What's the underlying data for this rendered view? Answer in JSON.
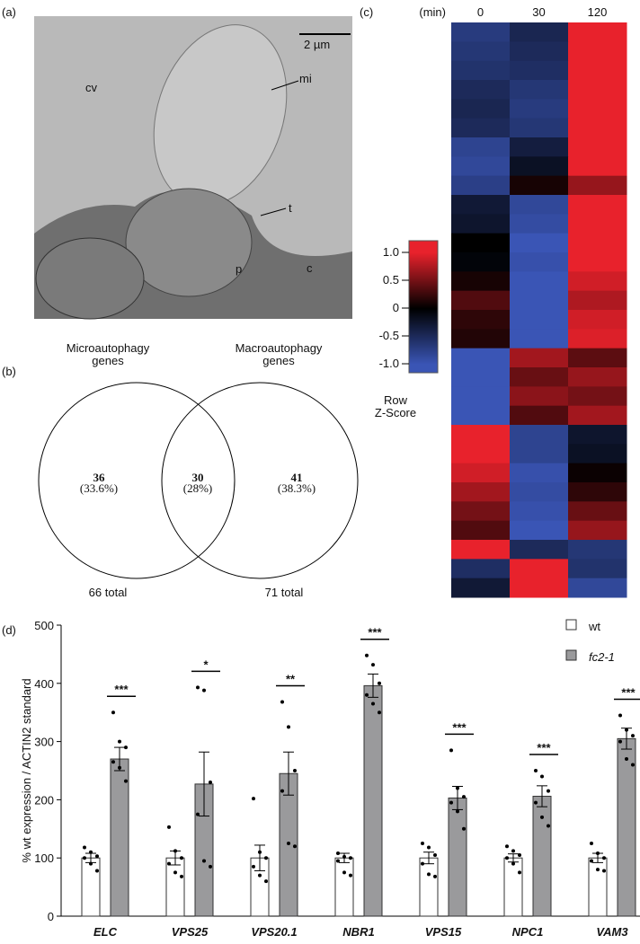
{
  "panel_labels": [
    "(a)",
    "(b)",
    "(c)",
    "(d)"
  ],
  "micrograph": {
    "scale_bar": "2 µm",
    "labels": [
      "cv",
      "mi",
      "t",
      "p",
      "c"
    ]
  },
  "venn": {
    "sets": [
      {
        "name": "Microautophagy\ngenes",
        "total": "66 total"
      },
      {
        "name": "Macroautophagy\ngenes",
        "total": "71 total"
      }
    ],
    "regions": [
      {
        "count": "36",
        "percent": "(33.6%)"
      },
      {
        "count": "30",
        "percent": "(28%)"
      },
      {
        "count": "41",
        "percent": "(38.3%)"
      }
    ]
  },
  "heatmap": {
    "unit": "(min)",
    "columns": [
      "0",
      "30",
      "120"
    ],
    "legend_title": "Row\nZ-Score",
    "legend_ticks": [
      {
        "value": 1,
        "label": "1.0"
      },
      0.5,
      0,
      -0.5,
      {
        "value": -1,
        "label": "-1.0"
      }
    ],
    "rows": [
      [
        -0.7,
        -0.45,
        1.15
      ],
      [
        -0.65,
        -0.5,
        1.15
      ],
      [
        -0.6,
        -0.55,
        1.15
      ],
      [
        -0.5,
        -0.65,
        1.15
      ],
      [
        -0.45,
        -0.7,
        1.15
      ],
      [
        -0.5,
        -0.65,
        1.15
      ],
      [
        -0.8,
        -0.35,
        1.15
      ],
      [
        -0.85,
        -0.2,
        1.05
      ],
      [
        -0.75,
        0.1,
        0.65
      ],
      [
        -0.3,
        -0.85,
        1.15
      ],
      [
        -0.25,
        -0.9,
        1.15
      ],
      [
        0,
        -1,
        1
      ],
      [
        -0.05,
        -0.95,
        1
      ],
      [
        0.1,
        -1,
        0.9
      ],
      [
        0.35,
        -1.1,
        0.75
      ],
      [
        0.2,
        -1.1,
        0.9
      ],
      [
        0.15,
        -1.1,
        0.95
      ],
      [
        -1.1,
        0.7,
        0.4
      ],
      [
        -1.1,
        0.45,
        0.65
      ],
      [
        -1.1,
        0.6,
        0.5
      ],
      [
        -1.05,
        0.35,
        0.7
      ],
      [
        1.05,
        -0.8,
        -0.25
      ],
      [
        1.0,
        -0.8,
        -0.2
      ],
      [
        0.9,
        -0.95,
        0.05
      ],
      [
        0.7,
        -0.9,
        0.2
      ],
      [
        0.5,
        -0.95,
        0.45
      ],
      [
        0.35,
        -1,
        0.65
      ],
      [
        1.15,
        -0.5,
        -0.65
      ],
      [
        -0.55,
        1.15,
        -0.6
      ],
      [
        -0.3,
        1.15,
        -0.85
      ]
    ]
  },
  "chart_data": {
    "type": "bar",
    "ylabel": "% wt expression / ACTIN2 standard",
    "categories": [
      "ELC",
      "VPS25",
      "VPS20.1",
      "NBR1",
      "VPS15",
      "NPC1",
      "VAM3"
    ],
    "ylim": [
      0,
      500
    ],
    "yticks": [
      0,
      100,
      200,
      300,
      400,
      500
    ],
    "annotations": [
      "***",
      "*",
      "**",
      "***",
      "***",
      "***",
      "***"
    ],
    "series": [
      {
        "name": "wt",
        "color": "#ffffff",
        "values": [
          100,
          100,
          100,
          100,
          100,
          100,
          100
        ],
        "errors": [
          8,
          12,
          22,
          8,
          10,
          7,
          8
        ],
        "points": [
          [
            118,
            110,
            103,
            100,
            90,
            78
          ],
          [
            153,
            112,
            100,
            90,
            75,
            68
          ],
          [
            202,
            110,
            100,
            85,
            70,
            60
          ],
          [
            108,
            102,
            100,
            95,
            75,
            70
          ],
          [
            125,
            118,
            105,
            90,
            72,
            68
          ],
          [
            120,
            112,
            105,
            100,
            90,
            75
          ],
          [
            125,
            108,
            100,
            95,
            80,
            78
          ]
        ]
      },
      {
        "name": "fc2-1",
        "color": "#9a9a9c",
        "values": [
          270,
          227,
          245,
          396,
          203,
          206,
          305
        ],
        "errors": [
          20,
          55,
          37,
          20,
          20,
          18,
          18
        ],
        "points": [
          [
            350,
            300,
            290,
            265,
            255,
            232
          ],
          [
            393,
            388,
            230,
            175,
            95,
            85
          ],
          [
            368,
            325,
            250,
            215,
            125,
            120
          ],
          [
            448,
            432,
            400,
            380,
            365,
            350
          ],
          [
            285,
            220,
            205,
            195,
            180,
            150
          ],
          [
            250,
            240,
            215,
            195,
            170,
            155
          ],
          [
            345,
            320,
            310,
            300,
            270,
            260
          ]
        ]
      }
    ]
  }
}
